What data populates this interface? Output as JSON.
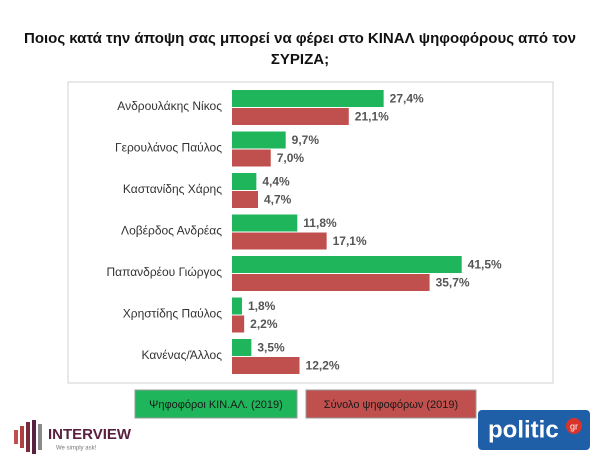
{
  "chart_data": {
    "type": "hbar",
    "title": "Ποιος κατά την άποψη σας μπορεί να φέρει στο ΚΙΝΑΛ ψηφοφόρους από τον ΣΥΡΙΖΑ;",
    "categories": [
      "Ανδρουλάκης Νίκος",
      "Γερουλάνος Παύλος",
      "Καστανίδης Χάρης",
      "Λοβέρδος Ανδρέας",
      "Παπανδρέου Γιώργος",
      "Χρηστίδης Παύλος",
      "Κανένας/Άλλος"
    ],
    "series": [
      {
        "name": "Ψηφοφόροι ΚΙΝ.ΑΛ. (2019)",
        "color": "#1fb55a",
        "values": [
          27.4,
          9.7,
          4.4,
          11.8,
          41.5,
          1.8,
          3.5
        ],
        "value_labels": [
          "27,4%",
          "9,7%",
          "4,4%",
          "11,8%",
          "41,5%",
          "1,8%",
          "3,5%"
        ]
      },
      {
        "name": "Σύνολο ψηφοφόρων (2019)",
        "color": "#c0504d",
        "values": [
          21.1,
          7.0,
          4.7,
          17.1,
          35.7,
          2.2,
          12.2
        ],
        "value_labels": [
          "21,1%",
          "7,0%",
          "4,7%",
          "17,1%",
          "35,7%",
          "2,2%",
          "12,2%"
        ]
      }
    ],
    "xlim": [
      0,
      58
    ]
  },
  "branding": {
    "left": "INTERVIEW",
    "left_tagline": "We simply ask!",
    "right": "politic",
    "right_suffix": "gr"
  }
}
